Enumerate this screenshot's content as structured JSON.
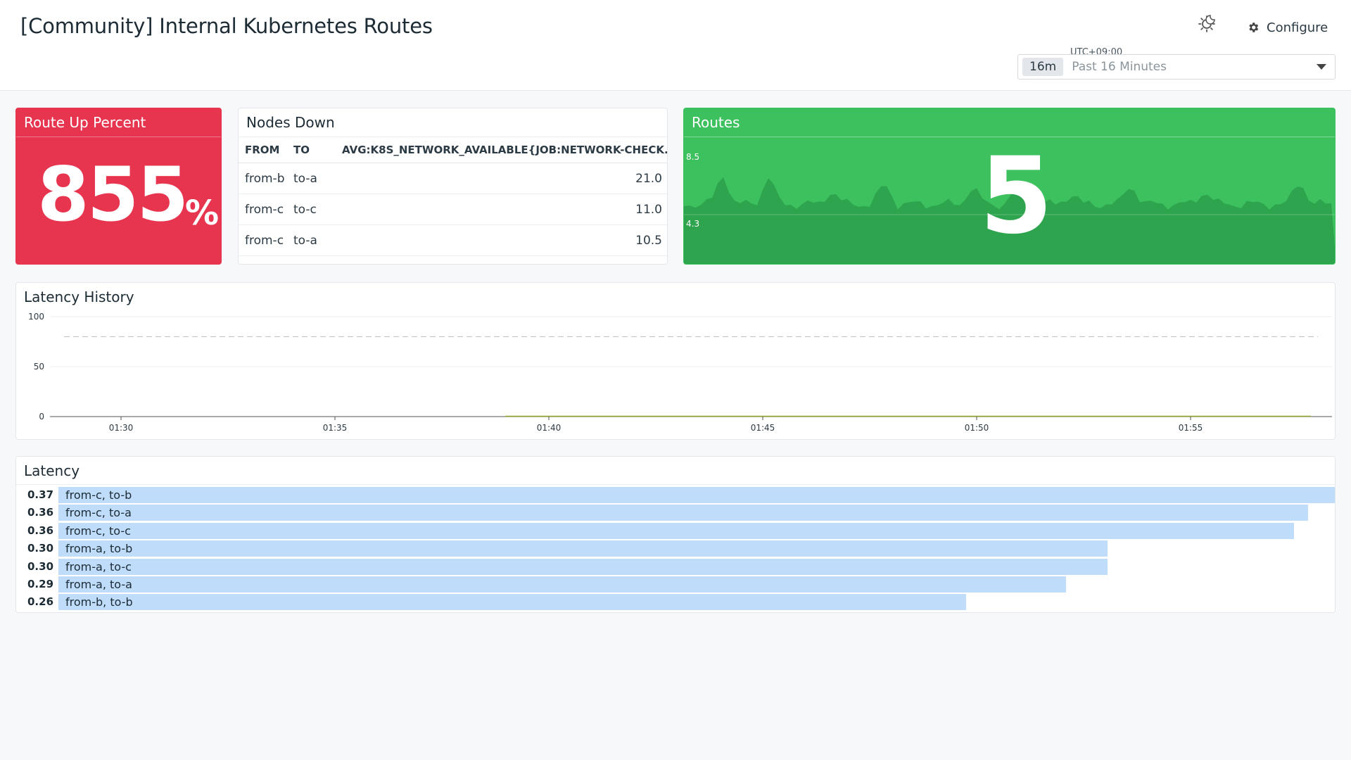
{
  "header": {
    "title": "[Community] Internal Kubernetes Routes",
    "configure_label": "Configure",
    "theme_icon": "theme-toggle-icon",
    "timezone": "UTC+09:00",
    "time_chip": "16m",
    "time_range": "Past 16 Minutes"
  },
  "route_up": {
    "title": "Route Up Percent",
    "value": "855",
    "unit": "%"
  },
  "nodes_down": {
    "title": "Nodes Down",
    "columns": [
      "FROM",
      "TO",
      "AVG:K8S_NETWORK_AVAILABLE{JOB:NETWORK-CHECK..."
    ],
    "rows": [
      {
        "from": "from-b",
        "to": "to-a",
        "value": "21.0"
      },
      {
        "from": "from-c",
        "to": "to-c",
        "value": "11.0"
      },
      {
        "from": "from-c",
        "to": "to-a",
        "value": "10.5"
      }
    ]
  },
  "routes": {
    "title": "Routes",
    "value": "5",
    "y_top": "8.5",
    "y_mid": "4.3"
  },
  "latency_history": {
    "title": "Latency History",
    "y_ticks": [
      "100",
      "50",
      "0"
    ],
    "x_ticks": [
      "01:30",
      "01:35",
      "01:40",
      "01:45",
      "01:50",
      "01:55"
    ]
  },
  "latency": {
    "title": "Latency",
    "max": 0.37,
    "rows": [
      {
        "value": "0.37",
        "label": "from-c, to-b",
        "v": 0.37
      },
      {
        "value": "0.36",
        "label": "from-c, to-a",
        "v": 0.362
      },
      {
        "value": "0.36",
        "label": "from-c, to-c",
        "v": 0.358
      },
      {
        "value": "0.30",
        "label": "from-a, to-b",
        "v": 0.304
      },
      {
        "value": "0.30",
        "label": "from-a, to-c",
        "v": 0.304
      },
      {
        "value": "0.29",
        "label": "from-a, to-a",
        "v": 0.292
      },
      {
        "value": "0.26",
        "label": "from-b, to-b",
        "v": 0.263
      }
    ]
  },
  "colors": {
    "route_up_bg": "#e8354f",
    "routes_bg": "#3dc15f",
    "bar_fill": "#bfdcfb"
  }
}
